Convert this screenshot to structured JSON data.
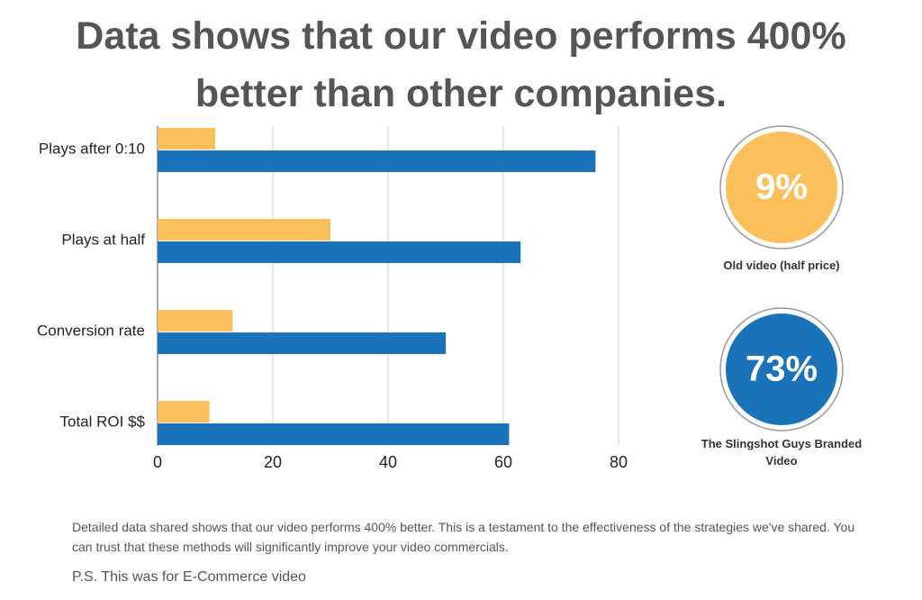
{
  "title": "Data shows that our video performs 400% better than other companies.",
  "chart_data": {
    "type": "bar",
    "orientation": "horizontal",
    "categories": [
      "Plays after 0:10",
      "Plays at half",
      "Conversion rate",
      "Total ROI $$"
    ],
    "series": [
      {
        "name": "Old video (half price)",
        "color": "#fbbf5c",
        "values": [
          10,
          30,
          13,
          9
        ]
      },
      {
        "name": "The Slingshot Guys Branded Video",
        "color": "#1a72b8",
        "values": [
          76,
          63,
          50,
          61
        ]
      }
    ],
    "xlim": [
      0,
      80
    ],
    "xticks": [
      0,
      20,
      40,
      60,
      80
    ],
    "grid": true,
    "highlights": [
      {
        "value": 9,
        "label": "9%"
      },
      {
        "value": 73,
        "label": "73%"
      }
    ]
  },
  "description": "Detailed data shared shows that our video performs 400% better. This is a testament to the effectiveness of the strategies we've shared. You can trust that these methods will significantly improve your video commercials.",
  "note": "P.S. This was for E-Commerce video"
}
